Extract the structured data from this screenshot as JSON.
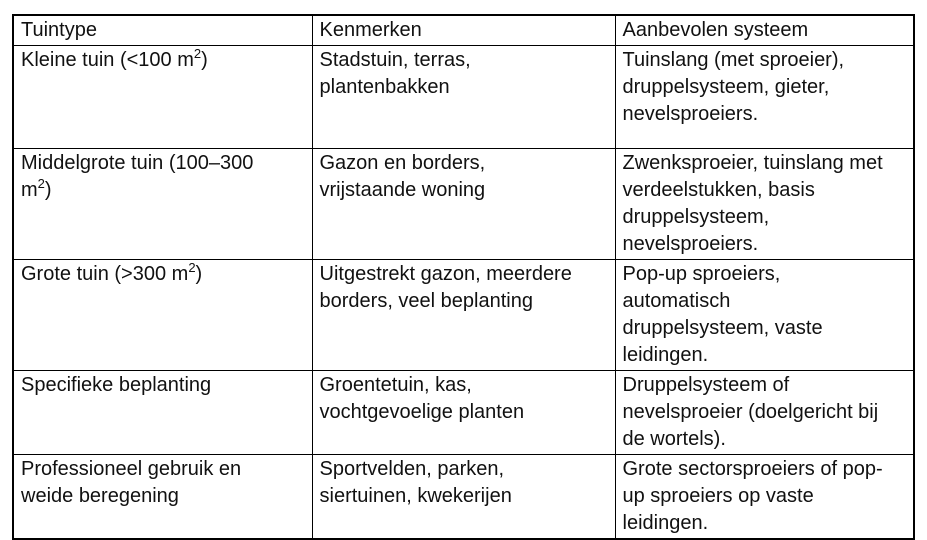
{
  "page": {
    "background_color": "#ffffff",
    "border_color": "#000000",
    "text_color": "#111111",
    "language": "nl"
  },
  "table": {
    "headers": [
      "Tuintype",
      "Kenmerken",
      "Aanbevolen systeem"
    ],
    "rows": [
      {
        "cells": [
          {
            "pre": "Kleine tuin (<100 m",
            "sup": "2",
            "post": ")"
          },
          {
            "pre": "Stadstuin, terras,\nplantenbakken"
          },
          {
            "pre": "Tuinslang (met sproeier),\ndruppelsysteem, gieter,\nnevelsproeiers."
          }
        ]
      },
      {
        "cells": [
          {
            "pre": "Middelgrote tuin (100–300\nm",
            "sup": "2",
            "post": ")"
          },
          {
            "pre": "Gazon en borders,\nvrijstaande woning"
          },
          {
            "pre": "Zwenksproeier, tuinslang met\nverdeelstukken, basis\ndruppelsysteem,\nnevelsproeiers."
          }
        ]
      },
      {
        "cells": [
          {
            "pre": "Grote tuin (>300 m",
            "sup": "2",
            "post": ")"
          },
          {
            "pre": "Uitgestrekt gazon, meerdere\nborders, veel beplanting"
          },
          {
            "pre": "Pop-up sproeiers,\nautomatisch\ndruppelsysteem, vaste\nleidingen."
          }
        ]
      },
      {
        "cells": [
          {
            "pre": "Specifieke beplanting"
          },
          {
            "pre": "Groentetuin, kas,\nvochtgevoelige planten"
          },
          {
            "pre": "Druppelsysteem of\nnevelsproeier (doelgericht bij\nde wortels)."
          }
        ]
      },
      {
        "cells": [
          {
            "pre": "Professioneel gebruik en\nweide beregening"
          },
          {
            "pre": "Sportvelden, parken,\nsiertuinen, kwekerijen"
          },
          {
            "pre": "Grote sectorsproeiers of pop-\nup sproeiers op vaste\nleidingen."
          }
        ]
      }
    ]
  }
}
